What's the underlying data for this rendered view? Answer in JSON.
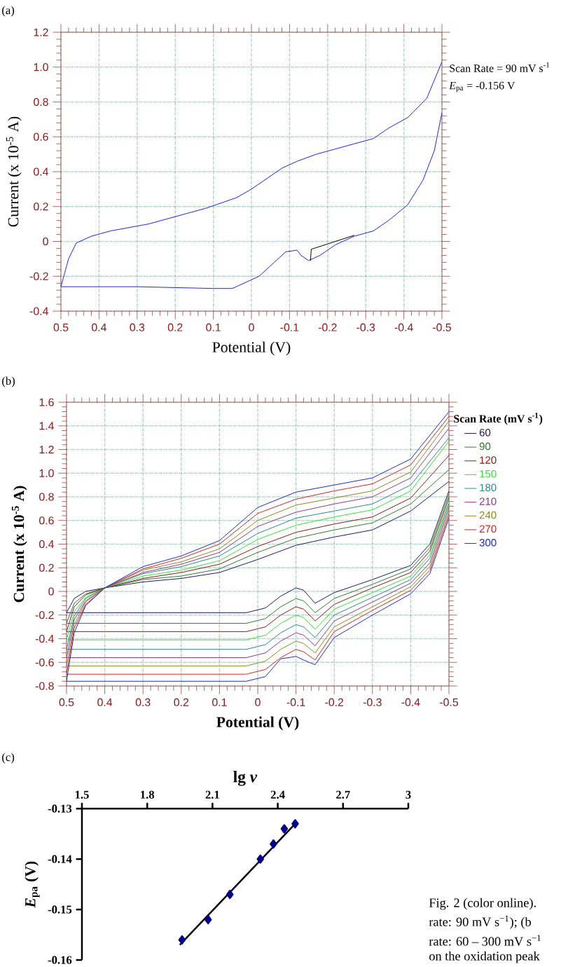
{
  "chart_data": [
    {
      "type": "line",
      "annotations": [
        "(a)",
        "Scan Rate = 90 mV s$^{-1}$",
        "*E*$_{pa}$ = -0.156 V"
      ],
      "xlabel": "Potential (V)",
      "ylabel": "Current (x 10$^{-5}$ A)",
      "xlim": [
        0.5,
        -0.5
      ],
      "xticks": [
        0.5,
        0.4,
        0.3,
        0.2,
        0.1,
        0,
        -0.1,
        -0.2,
        -0.3,
        -0.4,
        -0.5
      ],
      "ylim": [
        -0.4,
        1.2
      ],
      "yticks": [
        -0.4,
        -0.2,
        0,
        0.2,
        0.4,
        0.6,
        0.8,
        {
          "value": 1,
          "label": "1.0"
        },
        1.2
      ],
      "grid": true,
      "series": [
        {
          "color": "#2020ff",
          "x": [
            0.5,
            0.3,
            0.1,
            0.05,
            0.04,
            -0.02,
            -0.06,
            -0.09,
            -0.12,
            -0.13,
            -0.15,
            -0.18,
            -0.22,
            -0.27,
            -0.32,
            -0.36,
            -0.41,
            -0.45,
            -0.48,
            -0.5
          ],
          "values": [
            -0.26,
            -0.26,
            -0.27,
            -0.27,
            -0.26,
            -0.2,
            -0.12,
            -0.06,
            -0.05,
            -0.08,
            -0.11,
            -0.08,
            -0.02,
            0.03,
            0.06,
            0.12,
            0.21,
            0.35,
            0.52,
            0.74
          ]
        },
        {
          "color": "#2020ff",
          "x": [
            -0.5,
            -0.46,
            -0.41,
            -0.36,
            -0.32,
            -0.27,
            -0.22,
            -0.17,
            -0.12,
            -0.08,
            -0.04,
            0,
            0.04,
            0.08,
            0.12,
            0.17,
            0.27,
            0.37,
            0.42,
            0.46,
            0.48,
            0.49,
            0.5
          ],
          "values": [
            1.03,
            0.82,
            0.71,
            0.65,
            0.59,
            0.56,
            0.53,
            0.5,
            0.46,
            0.42,
            0.36,
            0.3,
            0.25,
            0.22,
            0.19,
            0.16,
            0.1,
            0.06,
            0.03,
            -0.01,
            -0.1,
            -0.18,
            -0.26
          ]
        },
        {
          "color": "#000000",
          "x": [
            -0.155,
            -0.157,
            -0.27
          ],
          "values": [
            -0.11,
            -0.045,
            0.035
          ]
        }
      ]
    },
    {
      "type": "line",
      "annotations": [
        "(b)"
      ],
      "xlabel": "Potential (V)",
      "ylabel": "Current (x 10$^{-5}$ A)",
      "legend_title": "Scan Rate (mV s$^{-1}$)",
      "legend": "right",
      "xlim": [
        0.5,
        -0.5
      ],
      "xticks": [
        0.5,
        0.4,
        0.3,
        0.2,
        0.1,
        0,
        -0.1,
        -0.2,
        -0.3,
        -0.4,
        -0.5
      ],
      "ylim": [
        -0.8,
        1.6
      ],
      "yticks": [
        -0.8,
        -0.6,
        -0.4,
        -0.2,
        0,
        0.2,
        0.4,
        0.6,
        0.8,
        {
          "value": 1,
          "label": "1.0"
        },
        1.2,
        1.4,
        1.6
      ],
      "grid": true,
      "x": [
        0.5,
        0.45,
        0.3,
        0.1,
        0.03,
        -0.02,
        -0.06,
        -0.1,
        -0.12,
        -0.15,
        -0.2,
        -0.3,
        -0.4,
        -0.45,
        -0.5
      ],
      "series": [
        {
          "name": "60",
          "color": "#1a1a6e",
          "values": [
            -0.18,
            -0.18,
            -0.18,
            -0.18,
            -0.18,
            -0.14,
            -0.04,
            0.03,
            0.01,
            -0.1,
            -0.01,
            0.1,
            0.22,
            0.4,
            0.85
          ]
        },
        {
          "color": "#1a1a6e",
          "x": [
            -0.5,
            -0.4,
            -0.3,
            -0.2,
            -0.1,
            0,
            0.1,
            0.2,
            0.3,
            0.4,
            0.45,
            0.48,
            0.5
          ],
          "values": [
            0.93,
            0.68,
            0.52,
            0.46,
            0.39,
            0.27,
            0.16,
            0.11,
            0.08,
            0.03,
            0.0,
            -0.06,
            -0.18
          ]
        },
        {
          "name": "90",
          "color": "#2e7d2e",
          "values": [
            -0.27,
            -0.27,
            -0.27,
            -0.27,
            -0.27,
            -0.23,
            -0.13,
            -0.06,
            -0.08,
            -0.18,
            -0.06,
            0.06,
            0.19,
            0.37,
            0.82
          ]
        },
        {
          "color": "#2e7d2e",
          "x": [
            -0.5,
            -0.4,
            -0.3,
            -0.2,
            -0.1,
            0,
            0.1,
            0.2,
            0.3,
            0.4,
            0.45,
            0.48,
            0.5
          ],
          "values": [
            1.03,
            0.74,
            0.58,
            0.52,
            0.45,
            0.33,
            0.19,
            0.13,
            0.1,
            0.03,
            -0.02,
            -0.1,
            -0.27
          ]
        },
        {
          "name": "120",
          "color": "#8b1a1a",
          "values": [
            -0.34,
            -0.34,
            -0.34,
            -0.34,
            -0.34,
            -0.3,
            -0.2,
            -0.13,
            -0.15,
            -0.25,
            -0.11,
            0.03,
            0.16,
            0.34,
            0.79
          ]
        },
        {
          "color": "#8b1a1a",
          "x": [
            -0.5,
            -0.4,
            -0.3,
            -0.2,
            -0.1,
            0,
            0.1,
            0.2,
            0.3,
            0.4,
            0.45,
            0.48,
            0.5
          ],
          "values": [
            1.15,
            0.79,
            0.63,
            0.57,
            0.5,
            0.38,
            0.23,
            0.16,
            0.11,
            0.03,
            -0.03,
            -0.13,
            -0.34
          ]
        },
        {
          "name": "150",
          "color": "#33e633",
          "values": [
            -0.41,
            -0.41,
            -0.41,
            -0.41,
            -0.41,
            -0.37,
            -0.27,
            -0.2,
            -0.22,
            -0.32,
            -0.15,
            -0.01,
            0.13,
            0.31,
            0.76
          ]
        },
        {
          "color": "#33e633",
          "x": [
            -0.5,
            -0.4,
            -0.3,
            -0.2,
            -0.1,
            0,
            0.1,
            0.2,
            0.3,
            0.4,
            0.45,
            0.48,
            0.5
          ],
          "values": [
            1.27,
            0.85,
            0.69,
            0.63,
            0.56,
            0.44,
            0.26,
            0.18,
            0.13,
            0.03,
            -0.05,
            -0.17,
            -0.41
          ]
        },
        {
          "name": "180",
          "color": "#2a8a8a",
          "values": [
            -0.49,
            -0.49,
            -0.49,
            -0.49,
            -0.49,
            -0.45,
            -0.35,
            -0.28,
            -0.3,
            -0.39,
            -0.2,
            -0.05,
            0.1,
            0.28,
            0.74
          ]
        },
        {
          "color": "#2a8a8a",
          "x": [
            -0.5,
            -0.4,
            -0.3,
            -0.2,
            -0.1,
            0,
            0.1,
            0.2,
            0.3,
            0.4,
            0.45,
            0.48,
            0.5
          ],
          "values": [
            1.3,
            0.9,
            0.74,
            0.68,
            0.62,
            0.49,
            0.3,
            0.21,
            0.15,
            0.03,
            -0.06,
            -0.21,
            -0.49
          ]
        },
        {
          "name": "210",
          "color": "#8e3a8e",
          "values": [
            -0.56,
            -0.56,
            -0.56,
            -0.56,
            -0.56,
            -0.52,
            -0.42,
            -0.35,
            -0.37,
            -0.46,
            -0.25,
            -0.09,
            0.07,
            0.24,
            0.71
          ]
        },
        {
          "color": "#8e3a8e",
          "x": [
            -0.5,
            -0.4,
            -0.3,
            -0.2,
            -0.1,
            0,
            0.1,
            0.2,
            0.3,
            0.4,
            0.45,
            0.48,
            0.5
          ],
          "values": [
            1.38,
            0.96,
            0.8,
            0.74,
            0.67,
            0.55,
            0.33,
            0.23,
            0.16,
            0.03,
            -0.08,
            -0.24,
            -0.56
          ]
        },
        {
          "name": "240",
          "color": "#8a8a1a",
          "values": [
            -0.63,
            -0.63,
            -0.63,
            -0.63,
            -0.63,
            -0.59,
            -0.49,
            -0.42,
            -0.44,
            -0.52,
            -0.3,
            -0.13,
            0.04,
            0.21,
            0.68
          ]
        },
        {
          "color": "#8a8a1a",
          "x": [
            -0.5,
            -0.4,
            -0.3,
            -0.2,
            -0.1,
            0,
            0.1,
            0.2,
            0.3,
            0.4,
            0.45,
            0.48,
            0.5
          ],
          "values": [
            1.44,
            1.01,
            0.85,
            0.79,
            0.73,
            0.6,
            0.36,
            0.25,
            0.18,
            0.03,
            -0.09,
            -0.28,
            -0.63
          ]
        },
        {
          "name": "270",
          "color": "#dd2222",
          "values": [
            -0.7,
            -0.7,
            -0.7,
            -0.7,
            -0.7,
            -0.66,
            -0.56,
            -0.49,
            -0.51,
            -0.58,
            -0.34,
            -0.16,
            0.01,
            0.18,
            0.65
          ]
        },
        {
          "color": "#dd2222",
          "x": [
            -0.5,
            -0.4,
            -0.3,
            -0.2,
            -0.1,
            0,
            0.1,
            0.2,
            0.3,
            0.4,
            0.45,
            0.48,
            0.5
          ],
          "values": [
            1.48,
            1.07,
            0.91,
            0.85,
            0.78,
            0.66,
            0.4,
            0.28,
            0.19,
            0.03,
            -0.11,
            -0.31,
            -0.7
          ]
        },
        {
          "name": "300",
          "color": "#1a2adf",
          "values": [
            -0.76,
            -0.76,
            -0.76,
            -0.76,
            -0.76,
            -0.72,
            -0.57,
            -0.55,
            -0.58,
            -0.62,
            -0.39,
            -0.2,
            -0.02,
            0.15,
            0.62
          ]
        },
        {
          "color": "#1a2adf",
          "x": [
            -0.5,
            -0.4,
            -0.3,
            -0.2,
            -0.1,
            0,
            0.1,
            0.2,
            0.3,
            0.4,
            0.45,
            0.48,
            0.5
          ],
          "values": [
            1.52,
            1.12,
            0.96,
            0.9,
            0.84,
            0.71,
            0.43,
            0.3,
            0.21,
            0.03,
            -0.12,
            -0.35,
            -0.76
          ]
        }
      ]
    },
    {
      "type": "scatter",
      "annotations": [
        "(c)",
        "Fig. 2 (color online).",
        "rate: 90 mV s$^{−1}$); (b",
        "rate: 60 – 300 mV s$^{−1}$",
        "on the oxidation peak"
      ],
      "xlabel": "lg *v*",
      "ylabel": "*E*$_{pa}$ (V)",
      "xlim": [
        1.5,
        3
      ],
      "xticks": [
        1.5,
        1.8,
        2.1,
        2.4,
        2.7,
        3
      ],
      "ylim": [
        -0.16,
        -0.13
      ],
      "yticks": [
        -0.16,
        -0.15,
        -0.14,
        -0.13
      ],
      "series": [
        {
          "type": "scatter",
          "marker": "diamond",
          "color": "#00008b",
          "x": [
            1.96,
            2.08,
            2.18,
            2.32,
            2.38,
            2.43,
            2.48
          ],
          "values": [
            -0.156,
            -0.152,
            -0.147,
            -0.14,
            -0.137,
            -0.134,
            -0.133
          ]
        },
        {
          "type": "line",
          "color": "#000000",
          "x": [
            1.95,
            2.48
          ],
          "values": [
            -0.157,
            -0.133
          ]
        }
      ]
    }
  ]
}
